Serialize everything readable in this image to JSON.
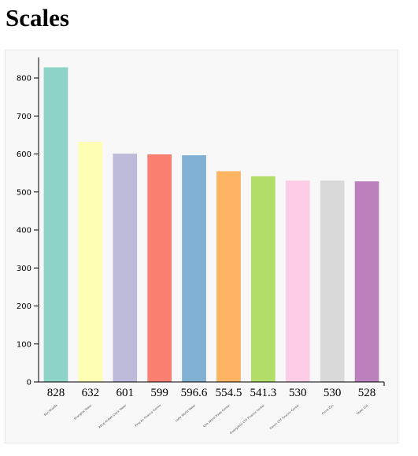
{
  "page": {
    "title": "Scales"
  },
  "chart_data": {
    "type": "bar",
    "title": "",
    "xlabel": "",
    "ylabel": "",
    "ylim": [
      0,
      850
    ],
    "yticks": [
      0,
      100,
      200,
      300,
      400,
      500,
      600,
      700,
      800
    ],
    "grid": false,
    "legend": "none",
    "categories": [
      "Burj Khalifa",
      "Shanghai Tower",
      "Abraj Al-Bait Clock Tower",
      "Ping An Finance Centre",
      "Lotte World Tower",
      "One World Trade Center",
      "Guangzhou CTF Finance Center",
      "Tianjin CTF Finance Center",
      "China Zun",
      "Taipei 101"
    ],
    "values": [
      828,
      632,
      601,
      599,
      596.6,
      554.5,
      541.3,
      530,
      530,
      528
    ],
    "value_labels": [
      "828",
      "632",
      "601",
      "599",
      "596.6",
      "554.5",
      "541.3",
      "530",
      "530",
      "528"
    ],
    "colors": [
      "#8dd3c7",
      "#ffffb3",
      "#bebada",
      "#fb8072",
      "#80b1d3",
      "#fdb462",
      "#b3de69",
      "#fccde5",
      "#d9d9d9",
      "#bc80bd"
    ]
  }
}
